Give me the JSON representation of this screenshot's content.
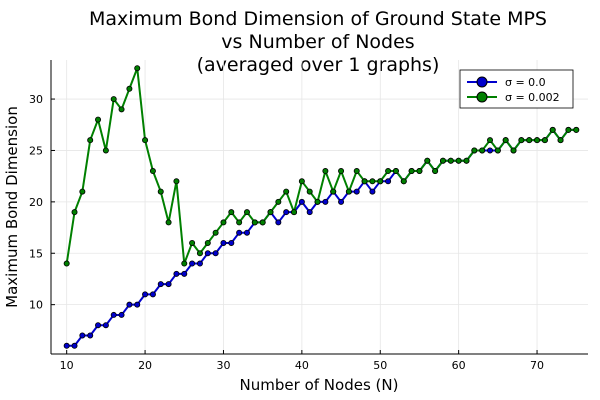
{
  "chart_data": {
    "type": "line",
    "title_lines": [
      "Maximum Bond Dimension of Ground State MPS",
      "vs Number of Nodes",
      "(averaged over 1 graphs)"
    ],
    "xlabel": "Number of Nodes (N)",
    "ylabel": "Maximum Bond Dimension",
    "xlim": [
      8.0,
      76.5
    ],
    "ylim": [
      5.2,
      33.8
    ],
    "xticks": [
      10,
      20,
      30,
      40,
      50,
      60,
      70
    ],
    "yticks": [
      10,
      15,
      20,
      25,
      30
    ],
    "grid": true,
    "legend_position": "top-right",
    "series": [
      {
        "name": "σ = 0.0",
        "color": "#0000cc",
        "x": [
          10,
          11,
          12,
          13,
          14,
          15,
          16,
          17,
          18,
          19,
          20,
          21,
          22,
          23,
          24,
          25,
          26,
          27,
          28,
          29,
          30,
          31,
          32,
          33,
          34,
          35,
          36,
          37,
          38,
          39,
          40,
          41,
          42,
          43,
          44,
          45,
          46,
          47,
          48,
          49,
          50,
          51,
          52,
          53,
          54,
          55,
          56,
          57,
          58,
          59,
          60,
          61,
          62,
          63,
          64,
          65,
          66,
          67,
          68,
          69,
          70,
          71,
          72,
          73,
          74,
          75
        ],
        "y": [
          6,
          6,
          7,
          7,
          8,
          8,
          9,
          9,
          10,
          10,
          11,
          11,
          12,
          12,
          13,
          13,
          14,
          14,
          15,
          15,
          16,
          16,
          17,
          17,
          18,
          18,
          19,
          18,
          19,
          19,
          20,
          19,
          20,
          20,
          21,
          20,
          21,
          21,
          22,
          21,
          22,
          22,
          23,
          22,
          23,
          23,
          24,
          23,
          24,
          24,
          24,
          24,
          25,
          25,
          25,
          25,
          26,
          25,
          26,
          26,
          26,
          26,
          27,
          26,
          27,
          27
        ]
      },
      {
        "name": "σ = 0.002",
        "color": "#008000",
        "x": [
          10,
          11,
          12,
          13,
          14,
          15,
          16,
          17,
          18,
          19,
          20,
          21,
          22,
          23,
          24,
          25,
          26,
          27,
          28,
          29,
          30,
          31,
          32,
          33,
          34,
          35,
          36,
          37,
          38,
          39,
          40,
          41,
          42,
          43,
          44,
          45,
          46,
          47,
          48,
          49,
          50,
          51,
          52,
          53,
          54,
          55,
          56,
          57,
          58,
          59,
          60,
          61,
          62,
          63,
          64,
          65,
          66,
          67,
          68,
          69,
          70,
          71,
          72,
          73,
          74,
          75
        ],
        "y": [
          14,
          19,
          21,
          26,
          28,
          25,
          30,
          29,
          31,
          33,
          26,
          23,
          21,
          18,
          22,
          14,
          16,
          15,
          16,
          17,
          18,
          19,
          18,
          19,
          18,
          18,
          19,
          20,
          21,
          19,
          22,
          21,
          20,
          23,
          21,
          23,
          21,
          23,
          22,
          22,
          22,
          23,
          23,
          22,
          23,
          23,
          24,
          23,
          24,
          24,
          24,
          24,
          25,
          25,
          26,
          25,
          26,
          25,
          26,
          26,
          26,
          26,
          27,
          26,
          27,
          27
        ]
      }
    ]
  }
}
